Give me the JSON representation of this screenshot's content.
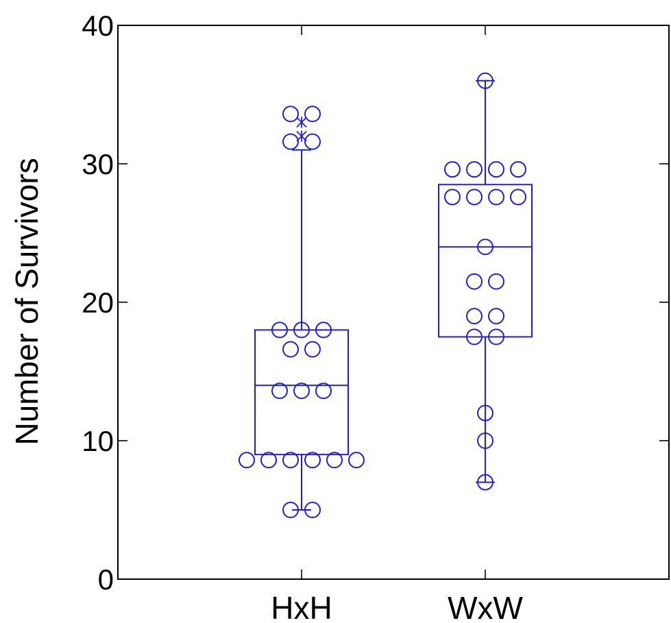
{
  "chart_data": {
    "type": "box",
    "ylabel": "Number of Survivors",
    "xlabel": "",
    "ylim": [
      0,
      40
    ],
    "yticks": [
      0,
      10,
      20,
      30,
      40
    ],
    "grid": false,
    "categories": [
      "HxH",
      "WxW"
    ],
    "color": "#1f1fcc",
    "boxes": [
      {
        "category": "HxH",
        "whisker_low": 5,
        "q1": 9,
        "median": 14,
        "q3": 18,
        "whisker_high": 31,
        "outliers": [
          32,
          33
        ],
        "points": [
          5,
          5,
          8.6,
          8.6,
          8.6,
          8.6,
          8.6,
          8.6,
          13.6,
          13.6,
          13.6,
          16.6,
          16.6,
          18,
          18,
          18,
          31.6,
          31.6,
          33.6,
          33.6
        ]
      },
      {
        "category": "WxW",
        "whisker_low": 7,
        "q1": 17.5,
        "median": 24,
        "q3": 28.5,
        "whisker_high": 36,
        "outliers": [],
        "points": [
          7,
          10,
          12,
          17.5,
          17.5,
          19,
          19,
          21.5,
          21.5,
          24,
          27.6,
          27.6,
          27.6,
          27.6,
          29.6,
          29.6,
          29.6,
          29.6,
          36
        ]
      }
    ]
  }
}
